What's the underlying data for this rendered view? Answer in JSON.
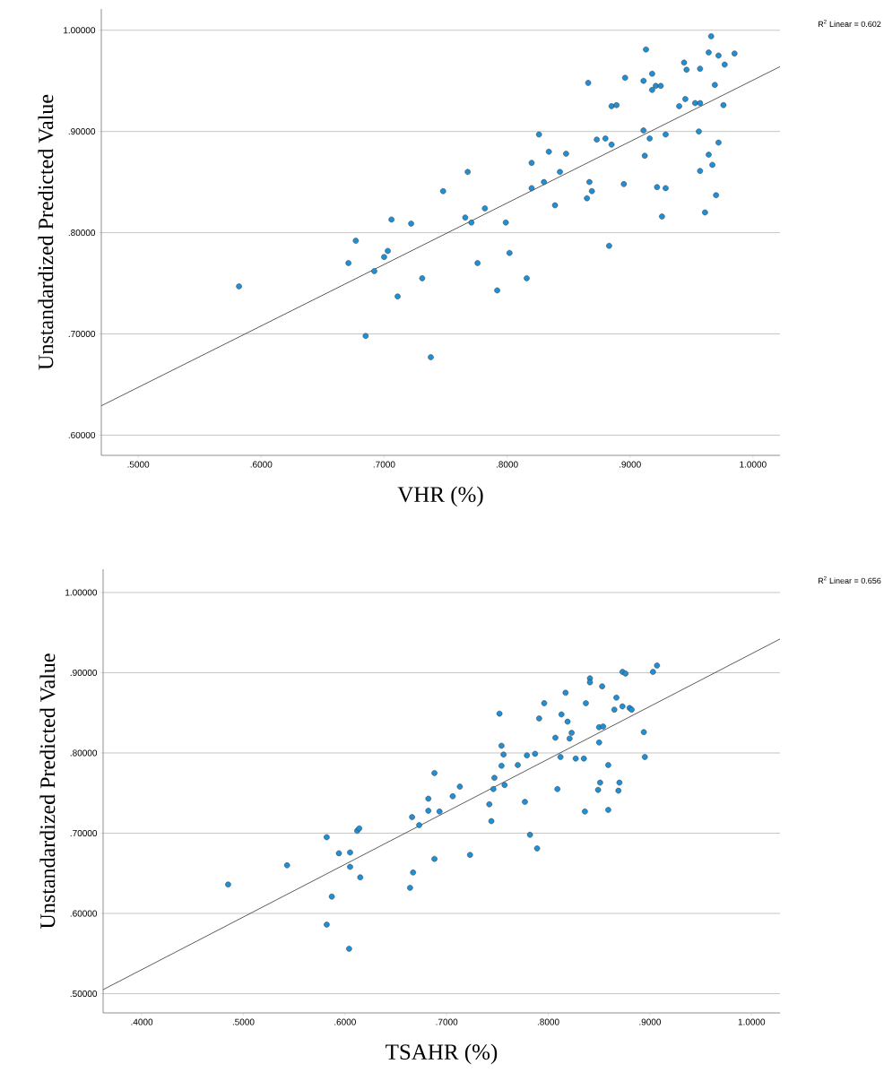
{
  "chart_data": [
    {
      "type": "scatter",
      "xlabel": "VHR (%)",
      "ylabel": "Unstandardized Predicted Value",
      "annotations": [
        "R$^{2}$ Linear = 0.602"
      ],
      "xlim": [
        0.47,
        1.022
      ],
      "ylim": [
        0.58,
        1.021
      ],
      "xticks": [
        {
          "value": 0.5,
          "label": ".5000"
        },
        {
          "value": 0.6,
          "label": ".6000"
        },
        {
          "value": 0.7,
          "label": ".7000"
        },
        {
          "value": 0.8,
          "label": ".8000"
        },
        {
          "value": 0.9,
          "label": ".9000"
        },
        {
          "value": 1.0,
          "label": "1.0000"
        }
      ],
      "yticks": [
        {
          "value": 0.6,
          "label": ".60000"
        },
        {
          "value": 0.7,
          "label": ".70000"
        },
        {
          "value": 0.8,
          "label": ".80000"
        },
        {
          "value": 0.9,
          "label": ".90000"
        },
        {
          "value": 1.0,
          "label": "1.00000"
        }
      ],
      "grid": "y",
      "series": [
        {
          "marker": "circle",
          "color": "#1f8fd6",
          "x": [
            0.582,
            0.671,
            0.677,
            0.692,
            0.7,
            0.703,
            0.706,
            0.685,
            0.711,
            0.722,
            0.731,
            0.738,
            0.748,
            0.766,
            0.768,
            0.771,
            0.782,
            0.776,
            0.799,
            0.802,
            0.792,
            0.816,
            0.82,
            0.82,
            0.826,
            0.83,
            0.834,
            0.843,
            0.839,
            0.848,
            0.866,
            0.867,
            0.865,
            0.869,
            0.873,
            0.88,
            0.885,
            0.885,
            0.889,
            0.883,
            0.896,
            0.895,
            0.911,
            0.913,
            0.918,
            0.918,
            0.921,
            0.925,
            0.911,
            0.916,
            0.912,
            0.922,
            0.929,
            0.926,
            0.929,
            0.94,
            0.945,
            0.944,
            0.946,
            0.953,
            0.957,
            0.957,
            0.956,
            0.957,
            0.961,
            0.966,
            0.964,
            0.972,
            0.985,
            0.977,
            0.969,
            0.976,
            0.972,
            0.964,
            0.967,
            0.97
          ],
          "values": [
            0.747,
            0.77,
            0.792,
            0.762,
            0.776,
            0.782,
            0.813,
            0.698,
            0.737,
            0.809,
            0.755,
            0.677,
            0.841,
            0.815,
            0.86,
            0.81,
            0.824,
            0.77,
            0.81,
            0.78,
            0.743,
            0.755,
            0.869,
            0.844,
            0.897,
            0.85,
            0.88,
            0.86,
            0.827,
            0.878,
            0.948,
            0.85,
            0.834,
            0.841,
            0.892,
            0.893,
            0.887,
            0.925,
            0.926,
            0.787,
            0.953,
            0.848,
            0.95,
            0.981,
            0.957,
            0.941,
            0.945,
            0.945,
            0.901,
            0.893,
            0.876,
            0.845,
            0.844,
            0.816,
            0.897,
            0.925,
            0.932,
            0.968,
            0.961,
            0.928,
            0.928,
            0.962,
            0.9,
            0.861,
            0.82,
            0.994,
            0.978,
            0.975,
            0.977,
            0.966,
            0.946,
            0.926,
            0.889,
            0.877,
            0.867,
            0.837
          ]
        },
        {
          "type": "line",
          "color": "#333333",
          "x": [
            0.47,
            1.022
          ],
          "values": [
            0.629,
            0.964
          ]
        }
      ]
    },
    {
      "type": "scatter",
      "xlabel": "TSAHR (%)",
      "ylabel": "Unstandardized Predicted Value",
      "annotations": [
        "R$^{2}$ Linear = 0.656"
      ],
      "xlim": [
        0.362,
        1.028
      ],
      "ylim": [
        0.476,
        1.029
      ],
      "xticks": [
        {
          "value": 0.4,
          "label": ".4000"
        },
        {
          "value": 0.5,
          "label": ".5000"
        },
        {
          "value": 0.6,
          "label": ".6000"
        },
        {
          "value": 0.7,
          "label": ".7000"
        },
        {
          "value": 0.8,
          "label": ".8000"
        },
        {
          "value": 0.9,
          "label": ".9000"
        },
        {
          "value": 1.0,
          "label": "1.0000"
        }
      ],
      "yticks": [
        {
          "value": 0.5,
          "label": ".50000"
        },
        {
          "value": 0.6,
          "label": ".60000"
        },
        {
          "value": 0.7,
          "label": ".70000"
        },
        {
          "value": 0.8,
          "label": ".80000"
        },
        {
          "value": 0.9,
          "label": ".90000"
        },
        {
          "value": 1.0,
          "label": "1.00000"
        }
      ],
      "grid": "y",
      "series": [
        {
          "marker": "circle",
          "color": "#1f8fd6",
          "x": [
            0.485,
            0.543,
            0.582,
            0.594,
            0.605,
            0.605,
            0.615,
            0.612,
            0.614,
            0.587,
            0.582,
            0.604,
            0.664,
            0.667,
            0.666,
            0.673,
            0.682,
            0.682,
            0.688,
            0.688,
            0.693,
            0.706,
            0.713,
            0.723,
            0.742,
            0.744,
            0.747,
            0.746,
            0.757,
            0.754,
            0.752,
            0.754,
            0.756,
            0.77,
            0.777,
            0.779,
            0.787,
            0.782,
            0.789,
            0.791,
            0.796,
            0.807,
            0.809,
            0.812,
            0.813,
            0.817,
            0.819,
            0.821,
            0.823,
            0.827,
            0.835,
            0.836,
            0.837,
            0.841,
            0.841,
            0.853,
            0.85,
            0.854,
            0.85,
            0.859,
            0.851,
            0.849,
            0.859,
            0.867,
            0.865,
            0.873,
            0.88,
            0.882,
            0.873,
            0.876,
            0.87,
            0.869,
            0.894,
            0.895,
            0.903,
            0.907
          ],
          "values": [
            0.636,
            0.66,
            0.695,
            0.675,
            0.676,
            0.658,
            0.645,
            0.703,
            0.706,
            0.621,
            0.586,
            0.556,
            0.632,
            0.651,
            0.72,
            0.71,
            0.743,
            0.728,
            0.775,
            0.668,
            0.727,
            0.746,
            0.758,
            0.673,
            0.736,
            0.715,
            0.769,
            0.755,
            0.76,
            0.784,
            0.849,
            0.809,
            0.798,
            0.785,
            0.739,
            0.797,
            0.799,
            0.698,
            0.681,
            0.843,
            0.862,
            0.819,
            0.755,
            0.795,
            0.848,
            0.875,
            0.839,
            0.818,
            0.825,
            0.793,
            0.793,
            0.727,
            0.862,
            0.893,
            0.888,
            0.883,
            0.832,
            0.833,
            0.813,
            0.785,
            0.763,
            0.754,
            0.729,
            0.869,
            0.854,
            0.858,
            0.856,
            0.854,
            0.901,
            0.899,
            0.763,
            0.753,
            0.826,
            0.795,
            0.901,
            0.909
          ]
        },
        {
          "type": "line",
          "color": "#333333",
          "x": [
            0.362,
            1.028
          ],
          "values": [
            0.505,
            0.942
          ]
        }
      ]
    }
  ]
}
